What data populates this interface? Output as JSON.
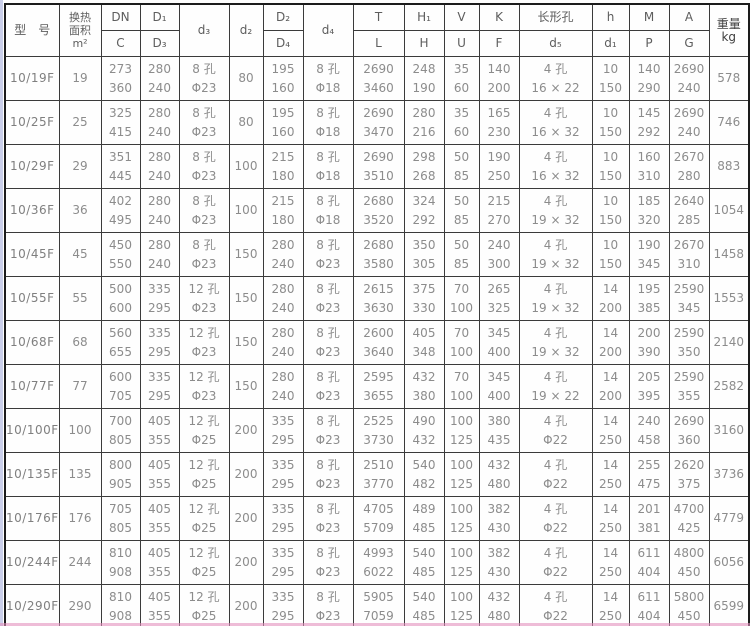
{
  "table": {
    "title_semantic": "heat-exchanger-dimension-spec-table",
    "header": {
      "cols": [
        {
          "name": "model",
          "top": "型　号",
          "rowspan": 2
        },
        {
          "name": "area",
          "top": "换热\n面积\nm²",
          "rowspan": 2,
          "small": true
        },
        {
          "name": "dn",
          "top": "DN",
          "bottom": "C"
        },
        {
          "name": "d1",
          "top": "D₁",
          "bottom": "D₃"
        },
        {
          "name": "d3",
          "top": "d₃",
          "rowspan": 2
        },
        {
          "name": "d2",
          "top": "d₂",
          "rowspan": 2
        },
        {
          "name": "D2",
          "top": "D₂",
          "bottom": "D₄"
        },
        {
          "name": "d4",
          "top": "d₄",
          "rowspan": 2
        },
        {
          "name": "t",
          "top": "T",
          "bottom": "L"
        },
        {
          "name": "h1",
          "top": "H₁",
          "bottom": "H"
        },
        {
          "name": "v",
          "top": "V",
          "bottom": "U"
        },
        {
          "name": "k",
          "top": "K",
          "bottom": "F"
        },
        {
          "name": "d5",
          "top": "长形孔",
          "bottom": "d₅"
        },
        {
          "name": "h",
          "top": "h",
          "bottom": "d₁"
        },
        {
          "name": "m",
          "top": "M",
          "bottom": "P"
        },
        {
          "name": "a",
          "top": "A",
          "bottom": "G"
        },
        {
          "name": "weight",
          "top": "重量\nkg",
          "rowspan": 2,
          "dark": true
        }
      ]
    },
    "rows": [
      {
        "model": "10/19F",
        "area": "19",
        "dn": [
          "273",
          "360"
        ],
        "d1": [
          "280",
          "240"
        ],
        "d3": [
          "8 孔",
          "Φ23"
        ],
        "d2": "80",
        "D2": [
          "195",
          "160"
        ],
        "d4": [
          "8 孔",
          "Φ18"
        ],
        "t": [
          "2690",
          "3460"
        ],
        "h1": [
          "248",
          "190"
        ],
        "v": [
          "35",
          "60"
        ],
        "k": [
          "140",
          "200"
        ],
        "d5": [
          "4 孔",
          "16 × 22"
        ],
        "h": [
          "10",
          "150"
        ],
        "m": [
          "140",
          "290"
        ],
        "a": [
          "2690",
          "240"
        ],
        "weight": "578"
      },
      {
        "model": "10/25F",
        "area": "25",
        "dn": [
          "325",
          "415"
        ],
        "d1": [
          "280",
          "240"
        ],
        "d3": [
          "8 孔",
          "Φ23"
        ],
        "d2": "80",
        "D2": [
          "195",
          "160"
        ],
        "d4": [
          "8 孔",
          "Φ18"
        ],
        "t": [
          "2690",
          "3470"
        ],
        "h1": [
          "280",
          "216"
        ],
        "v": [
          "35",
          "60"
        ],
        "k": [
          "165",
          "230"
        ],
        "d5": [
          "4 孔",
          "16 × 32"
        ],
        "h": [
          "10",
          "150"
        ],
        "m": [
          "145",
          "292"
        ],
        "a": [
          "2690",
          "240"
        ],
        "weight": "746"
      },
      {
        "model": "10/29F",
        "area": "29",
        "dn": [
          "351",
          "445"
        ],
        "d1": [
          "280",
          "240"
        ],
        "d3": [
          "8 孔",
          "Φ23"
        ],
        "d2": "100",
        "D2": [
          "215",
          "180"
        ],
        "d4": [
          "8 孔",
          "Φ18"
        ],
        "t": [
          "2690",
          "3510"
        ],
        "h1": [
          "298",
          "268"
        ],
        "v": [
          "50",
          "85"
        ],
        "k": [
          "190",
          "250"
        ],
        "d5": [
          "4 孔",
          "16 × 32"
        ],
        "h": [
          "10",
          "150"
        ],
        "m": [
          "160",
          "310"
        ],
        "a": [
          "2670",
          "280"
        ],
        "weight": "883"
      },
      {
        "model": "10/36F",
        "area": "36",
        "dn": [
          "402",
          "495"
        ],
        "d1": [
          "280",
          "240"
        ],
        "d3": [
          "8 孔",
          "Φ23"
        ],
        "d2": "100",
        "D2": [
          "215",
          "180"
        ],
        "d4": [
          "8 孔",
          "Φ18"
        ],
        "t": [
          "2680",
          "3520"
        ],
        "h1": [
          "324",
          "292"
        ],
        "v": [
          "50",
          "85"
        ],
        "k": [
          "215",
          "270"
        ],
        "d5": [
          "4 孔",
          "19 × 32"
        ],
        "h": [
          "10",
          "150"
        ],
        "m": [
          "185",
          "320"
        ],
        "a": [
          "2640",
          "285"
        ],
        "weight": "1054"
      },
      {
        "model": "10/45F",
        "area": "45",
        "dn": [
          "450",
          "550"
        ],
        "d1": [
          "280",
          "240"
        ],
        "d3": [
          "8 孔",
          "Φ23"
        ],
        "d2": "150",
        "D2": [
          "280",
          "240"
        ],
        "d4": [
          "8 孔",
          "Φ23"
        ],
        "t": [
          "2680",
          "3580"
        ],
        "h1": [
          "350",
          "305"
        ],
        "v": [
          "50",
          "85"
        ],
        "k": [
          "240",
          "300"
        ],
        "d5": [
          "4 孔",
          "19 × 32"
        ],
        "h": [
          "10",
          "150"
        ],
        "m": [
          "190",
          "345"
        ],
        "a": [
          "2670",
          "310"
        ],
        "weight": "1458"
      },
      {
        "model": "10/55F",
        "area": "55",
        "dn": [
          "500",
          "600"
        ],
        "d1": [
          "335",
          "295"
        ],
        "d3": [
          "12 孔",
          "Φ23"
        ],
        "d2": "150",
        "D2": [
          "280",
          "240"
        ],
        "d4": [
          "8 孔",
          "Φ23"
        ],
        "t": [
          "2615",
          "3630"
        ],
        "h1": [
          "375",
          "330"
        ],
        "v": [
          "70",
          "100"
        ],
        "k": [
          "265",
          "325"
        ],
        "d5": [
          "4 孔",
          "19 × 32"
        ],
        "h": [
          "14",
          "200"
        ],
        "m": [
          "195",
          "385"
        ],
        "a": [
          "2590",
          "345"
        ],
        "weight": "1553"
      },
      {
        "model": "10/68F",
        "area": "68",
        "dn": [
          "560",
          "655"
        ],
        "d1": [
          "335",
          "295"
        ],
        "d3": [
          "12 孔",
          "Φ23"
        ],
        "d2": "150",
        "D2": [
          "280",
          "240"
        ],
        "d4": [
          "8 孔",
          "Φ23"
        ],
        "t": [
          "2600",
          "3640"
        ],
        "h1": [
          "405",
          "348"
        ],
        "v": [
          "70",
          "100"
        ],
        "k": [
          "345",
          "400"
        ],
        "d5": [
          "4 孔",
          "19 × 32"
        ],
        "h": [
          "14",
          "200"
        ],
        "m": [
          "200",
          "390"
        ],
        "a": [
          "2590",
          "350"
        ],
        "weight": "2140"
      },
      {
        "model": "10/77F",
        "area": "77",
        "dn": [
          "600",
          "705"
        ],
        "d1": [
          "335",
          "295"
        ],
        "d3": [
          "12 孔",
          "Φ23"
        ],
        "d2": "150",
        "D2": [
          "280",
          "240"
        ],
        "d4": [
          "8 孔",
          "Φ23"
        ],
        "t": [
          "2595",
          "3655"
        ],
        "h1": [
          "432",
          "380"
        ],
        "v": [
          "70",
          "100"
        ],
        "k": [
          "345",
          "400"
        ],
        "d5": [
          "4 孔",
          "19 × 22"
        ],
        "h": [
          "14",
          "200"
        ],
        "m": [
          "205",
          "395"
        ],
        "a": [
          "2590",
          "355"
        ],
        "weight": "2582"
      },
      {
        "model": "10/100F",
        "area": "100",
        "dn": [
          "700",
          "805"
        ],
        "d1": [
          "405",
          "355"
        ],
        "d3": [
          "12 孔",
          "Φ25"
        ],
        "d2": "200",
        "D2": [
          "335",
          "295"
        ],
        "d4": [
          "8 孔",
          "Φ23"
        ],
        "t": [
          "2525",
          "3730"
        ],
        "h1": [
          "490",
          "432"
        ],
        "v": [
          "100",
          "125"
        ],
        "k": [
          "380",
          "435"
        ],
        "d5": [
          "4 孔",
          "Φ22"
        ],
        "h": [
          "14",
          "250"
        ],
        "m": [
          "240",
          "458"
        ],
        "a": [
          "2690",
          "360"
        ],
        "weight": "3160"
      },
      {
        "model": "10/135F",
        "area": "135",
        "dn": [
          "800",
          "905"
        ],
        "d1": [
          "405",
          "355"
        ],
        "d3": [
          "12 孔",
          "Φ25"
        ],
        "d2": "200",
        "D2": [
          "335",
          "295"
        ],
        "d4": [
          "8 孔",
          "Φ23"
        ],
        "t": [
          "2510",
          "3770"
        ],
        "h1": [
          "540",
          "482"
        ],
        "v": [
          "100",
          "125"
        ],
        "k": [
          "432",
          "480"
        ],
        "d5": [
          "4 孔",
          "Φ22"
        ],
        "h": [
          "14",
          "250"
        ],
        "m": [
          "255",
          "475"
        ],
        "a": [
          "2620",
          "375"
        ],
        "weight": "3736"
      },
      {
        "model": "10/176F",
        "area": "176",
        "dn": [
          "705",
          "805"
        ],
        "d1": [
          "405",
          "355"
        ],
        "d3": [
          "12 孔",
          "Φ25"
        ],
        "d2": "200",
        "D2": [
          "335",
          "295"
        ],
        "d4": [
          "8 孔",
          "Φ23"
        ],
        "t": [
          "4705",
          "5709"
        ],
        "h1": [
          "489",
          "485"
        ],
        "v": [
          "100",
          "125"
        ],
        "k": [
          "382",
          "430"
        ],
        "d5": [
          "4 孔",
          "Φ22"
        ],
        "h": [
          "14",
          "250"
        ],
        "m": [
          "201",
          "381"
        ],
        "a": [
          "4700",
          "425"
        ],
        "weight": "4779"
      },
      {
        "model": "10/244F",
        "area": "244",
        "dn": [
          "810",
          "908"
        ],
        "d1": [
          "405",
          "355"
        ],
        "d3": [
          "12 孔",
          "Φ25"
        ],
        "d2": "200",
        "D2": [
          "335",
          "295"
        ],
        "d4": [
          "8 孔",
          "Φ23"
        ],
        "t": [
          "4993",
          "6022"
        ],
        "h1": [
          "540",
          "485"
        ],
        "v": [
          "100",
          "125"
        ],
        "k": [
          "382",
          "430"
        ],
        "d5": [
          "4 孔",
          "Φ22"
        ],
        "h": [
          "14",
          "250"
        ],
        "m": [
          "611",
          "404"
        ],
        "a": [
          "4800",
          "450"
        ],
        "weight": "6056"
      },
      {
        "model": "10/290F",
        "area": "290",
        "dn": [
          "810",
          "908"
        ],
        "d1": [
          "405",
          "355"
        ],
        "d3": [
          "12 孔",
          "Φ25"
        ],
        "d2": "200",
        "D2": [
          "335",
          "295"
        ],
        "d4": [
          "8 孔",
          "Φ23"
        ],
        "t": [
          "5905",
          "7059"
        ],
        "h1": [
          "540",
          "485"
        ],
        "v": [
          "100",
          "125"
        ],
        "k": [
          "432",
          "480"
        ],
        "d5": [
          "4 孔",
          "Φ22"
        ],
        "h": [
          "14",
          "250"
        ],
        "m": [
          "611",
          "404"
        ],
        "a": [
          "5800",
          "450"
        ],
        "weight": "6599"
      }
    ]
  }
}
